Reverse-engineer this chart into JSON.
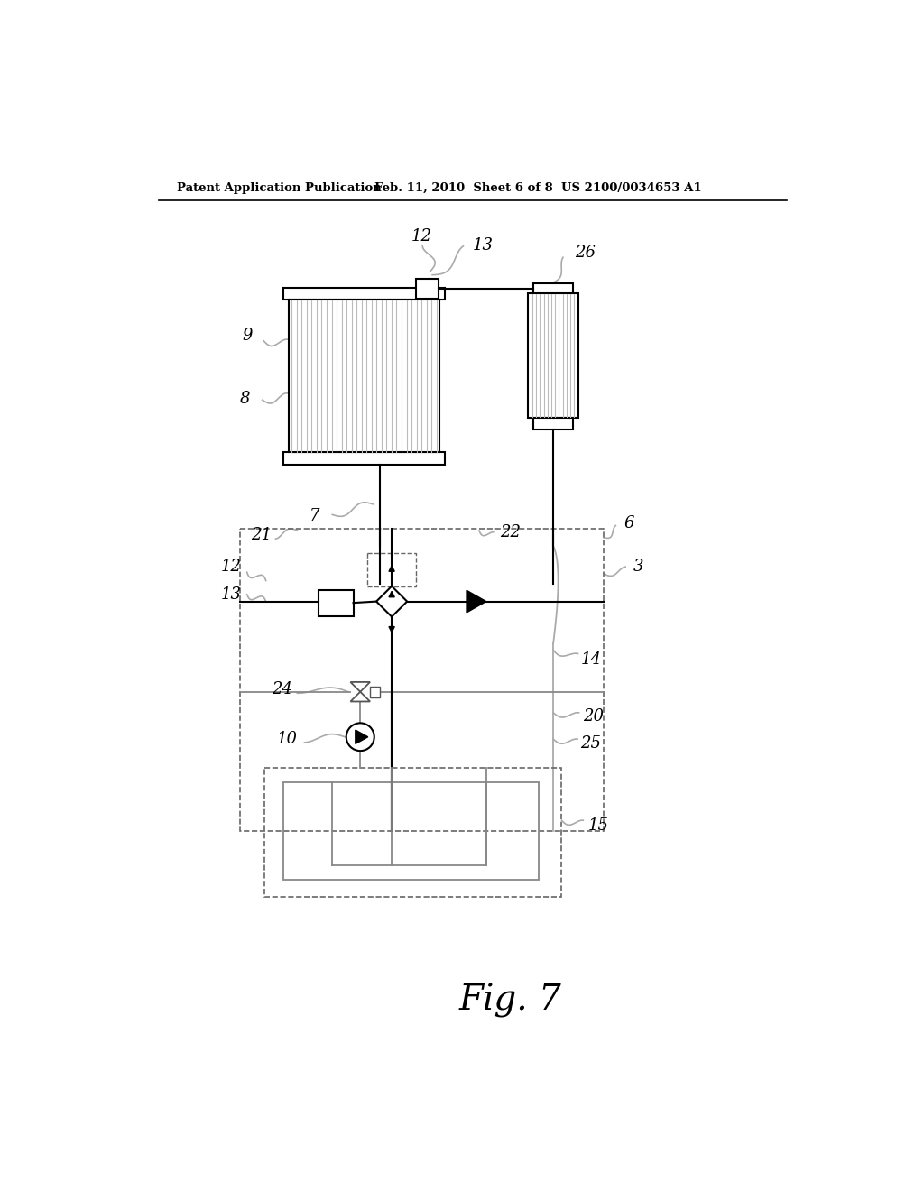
{
  "header_left": "Patent Application Publication",
  "header_mid": "Feb. 11, 2010  Sheet 6 of 8",
  "header_right": "US 2100/0034653 A1",
  "fig_label": "Fig. 7",
  "bg_color": "#ffffff"
}
